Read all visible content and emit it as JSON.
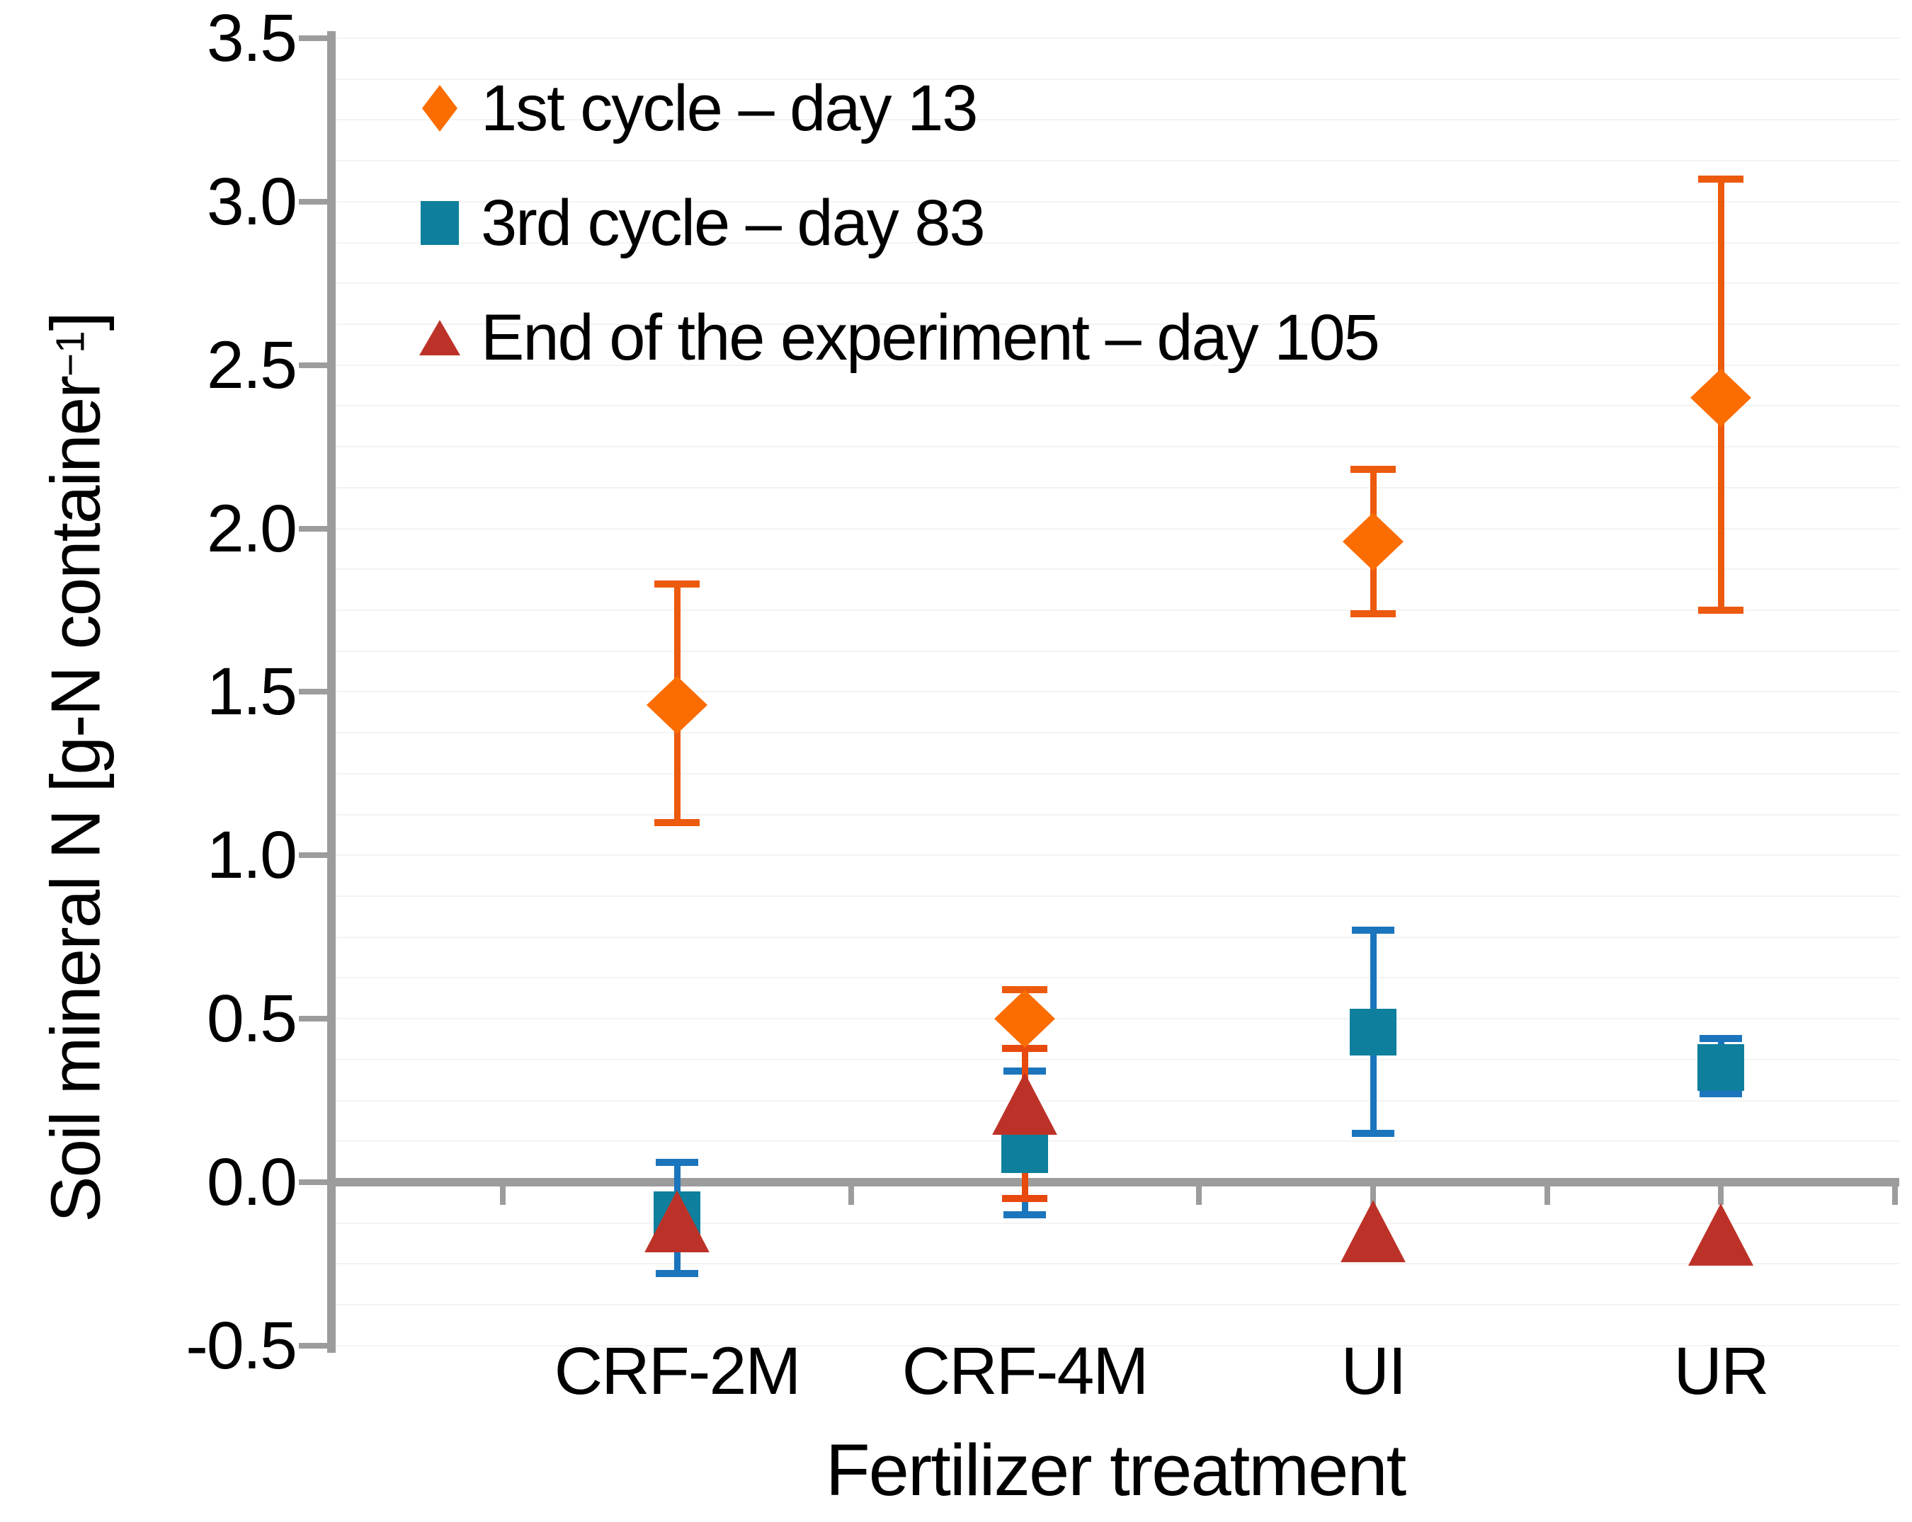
{
  "colors": {
    "diamond_fill": "#fb6d01",
    "diamond_error": "#ec5a0e",
    "square_fill": "#0e7f9c",
    "square_error": "#1b75bc",
    "triangle_fill": "#bd3228",
    "triangle_error": "#e8490f",
    "axis_gray": "#9c9c9c",
    "gridline": "#f3f3f3",
    "text": "#000000"
  },
  "axes": {
    "x_title": "Fertilizer treatment",
    "y_title_main": "Soil mineral N [g-N container",
    "y_title_sup": "−1",
    "y_title_close": "]",
    "y_tick_labels": [
      "3.5",
      "3.0",
      "2.5",
      "2.0",
      "1.5",
      "1.0",
      "0.5",
      "0.0",
      "-0.5"
    ]
  },
  "legend": {
    "items": [
      {
        "label": "1st cycle – day 13",
        "marker": "diamond"
      },
      {
        "label": "3rd cycle – day 83",
        "marker": "square"
      },
      {
        "label": "End of the experiment – day 105",
        "marker": "triangle"
      }
    ]
  },
  "chart_data": {
    "type": "scatter",
    "title": "",
    "xlabel": "Fertilizer treatment",
    "ylabel": "Soil mineral N [g-N container^-1]",
    "categories": [
      "CRF-2M",
      "CRF-4M",
      "UI",
      "UR"
    ],
    "ylim": [
      -0.5,
      3.5
    ],
    "ytick_step": 0.5,
    "grid": "faint horizontal minor gridlines",
    "legend_position": "inside top-left",
    "series": [
      {
        "name": "1st cycle – day 13",
        "marker": "diamond",
        "values": [
          1.46,
          0.5,
          1.96,
          2.4
        ],
        "error_low": [
          1.1,
          0.41,
          1.74,
          1.75
        ],
        "error_high": [
          1.83,
          0.59,
          2.18,
          3.07
        ]
      },
      {
        "name": "3rd cycle – day 83",
        "marker": "square",
        "values": [
          -0.1,
          0.1,
          0.46,
          0.35
        ],
        "error_low": [
          -0.28,
          -0.1,
          0.15,
          0.27
        ],
        "error_high": [
          0.06,
          0.34,
          0.77,
          0.44
        ]
      },
      {
        "name": "End of the experiment – day 105",
        "marker": "triangle",
        "values": [
          -0.12,
          0.24,
          -0.15,
          -0.16
        ],
        "error_low": [
          null,
          -0.05,
          null,
          null
        ],
        "error_high": [
          null,
          0.41,
          null,
          null
        ]
      }
    ]
  }
}
